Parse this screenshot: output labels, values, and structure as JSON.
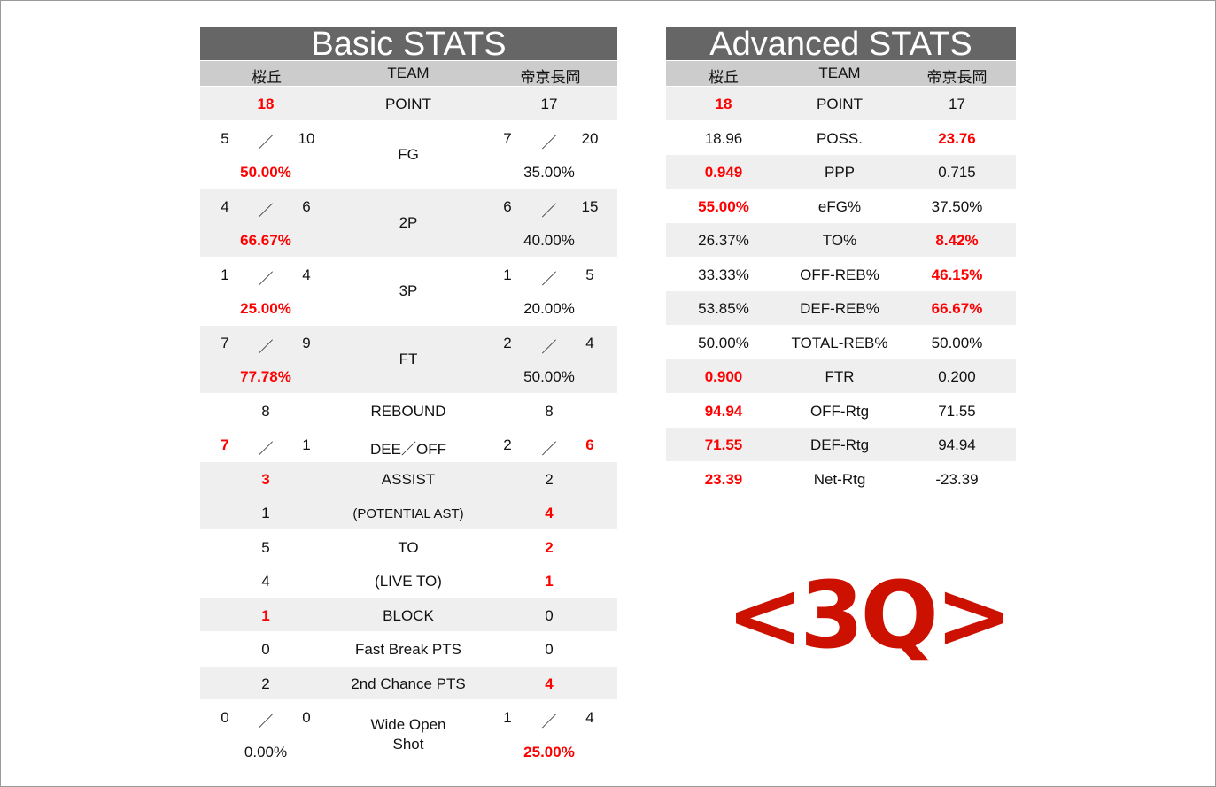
{
  "basic": {
    "title": "Basic STATS",
    "columns": [
      "桜丘",
      "TEAM",
      "帝京長岡"
    ],
    "groups": [
      {
        "shaded": true,
        "lines": [
          {
            "label": "POINT",
            "left": {
              "v": "18",
              "red": true
            },
            "right": {
              "v": "17"
            }
          }
        ]
      },
      {
        "shaded": false,
        "label": "FG",
        "lines": [
          {
            "left": {
              "a": "5",
              "b": "10"
            },
            "right": {
              "a": "7",
              "b": "20"
            }
          },
          {
            "left": {
              "v": "50.00%",
              "red": true
            },
            "right": {
              "v": "35.00%"
            }
          }
        ]
      },
      {
        "shaded": true,
        "label": "2P",
        "lines": [
          {
            "left": {
              "a": "4",
              "b": "6"
            },
            "right": {
              "a": "6",
              "b": "15"
            }
          },
          {
            "left": {
              "v": "66.67%",
              "red": true
            },
            "right": {
              "v": "40.00%"
            }
          }
        ]
      },
      {
        "shaded": false,
        "label": "3P",
        "lines": [
          {
            "left": {
              "a": "1",
              "b": "4"
            },
            "right": {
              "a": "1",
              "b": "5"
            }
          },
          {
            "left": {
              "v": "25.00%",
              "red": true
            },
            "right": {
              "v": "20.00%"
            }
          }
        ]
      },
      {
        "shaded": true,
        "label": "FT",
        "lines": [
          {
            "left": {
              "a": "7",
              "b": "9"
            },
            "right": {
              "a": "2",
              "b": "4"
            }
          },
          {
            "left": {
              "v": "77.78%",
              "red": true
            },
            "right": {
              "v": "50.00%"
            }
          }
        ]
      },
      {
        "shaded": false,
        "lines": [
          {
            "label": "REBOUND",
            "left": {
              "v": "8"
            },
            "right": {
              "v": "8"
            }
          },
          {
            "label": "DEE／OFF",
            "left": {
              "a": "7",
              "b": "1",
              "ra": true
            },
            "right": {
              "a": "2",
              "b": "6",
              "rb": true
            }
          }
        ]
      },
      {
        "shaded": true,
        "lines": [
          {
            "label": "ASSIST",
            "left": {
              "v": "3",
              "red": true
            },
            "right": {
              "v": "2"
            }
          },
          {
            "label": "(POTENTIAL AST)",
            "small": true,
            "left": {
              "v": "1"
            },
            "right": {
              "v": "4",
              "red": true
            }
          }
        ]
      },
      {
        "shaded": false,
        "lines": [
          {
            "label": "TO",
            "left": {
              "v": "5"
            },
            "right": {
              "v": "2",
              "red": true
            }
          },
          {
            "label": "(LIVE TO)",
            "left": {
              "v": "4"
            },
            "right": {
              "v": "1",
              "red": true
            }
          }
        ]
      },
      {
        "shaded": true,
        "lines": [
          {
            "label": "BLOCK",
            "left": {
              "v": "1",
              "red": true
            },
            "right": {
              "v": "0"
            }
          }
        ]
      },
      {
        "shaded": false,
        "lines": [
          {
            "label": "Fast Break PTS",
            "left": {
              "v": "0"
            },
            "right": {
              "v": "0"
            }
          }
        ]
      },
      {
        "shaded": true,
        "lines": [
          {
            "label": "2nd Chance PTS",
            "left": {
              "v": "2"
            },
            "right": {
              "v": "4",
              "red": true
            }
          }
        ]
      },
      {
        "shaded": false,
        "label": "Wide Open\nShot",
        "lines": [
          {
            "left": {
              "a": "0",
              "b": "0"
            },
            "right": {
              "a": "1",
              "b": "4"
            }
          },
          {
            "left": {
              "v": "0.00%"
            },
            "right": {
              "v": "25.00%",
              "red": true
            }
          }
        ]
      }
    ],
    "slash": "／"
  },
  "advanced": {
    "title": "Advanced STATS",
    "columns": [
      "桜丘",
      "TEAM",
      "帝京長岡"
    ],
    "rows": [
      {
        "label": "POINT",
        "left": "18",
        "right": "17",
        "red": "left"
      },
      {
        "label": "POSS.",
        "left": "18.96",
        "right": "23.76",
        "red": "right"
      },
      {
        "label": "PPP",
        "left": "0.949",
        "right": "0.715",
        "red": "left"
      },
      {
        "label": "eFG%",
        "left": "55.00%",
        "right": "37.50%",
        "red": "left"
      },
      {
        "label": "TO%",
        "left": "26.37%",
        "right": "8.42%",
        "red": "right"
      },
      {
        "label": "OFF-REB%",
        "left": "33.33%",
        "right": "46.15%",
        "red": "right"
      },
      {
        "label": "DEF-REB%",
        "left": "53.85%",
        "right": "66.67%",
        "red": "right"
      },
      {
        "label": "TOTAL-REB%",
        "left": "50.00%",
        "right": "50.00%",
        "red": ""
      },
      {
        "label": "FTR",
        "left": "0.900",
        "right": "0.200",
        "red": "left"
      },
      {
        "label": "OFF-Rtg",
        "left": "94.94",
        "right": "71.55",
        "red": "left"
      },
      {
        "label": "DEF-Rtg",
        "left": "71.55",
        "right": "94.94",
        "red": "left"
      },
      {
        "label": "Net-Rtg",
        "left": "23.39",
        "right": "-23.39",
        "red": "left"
      }
    ]
  },
  "logo": {
    "text": "<3Q>"
  },
  "colors": {
    "red": "#ff0000",
    "header": "#666666",
    "subheader": "#cccccc",
    "shade": "#efefef",
    "logo": "#cc1100"
  }
}
